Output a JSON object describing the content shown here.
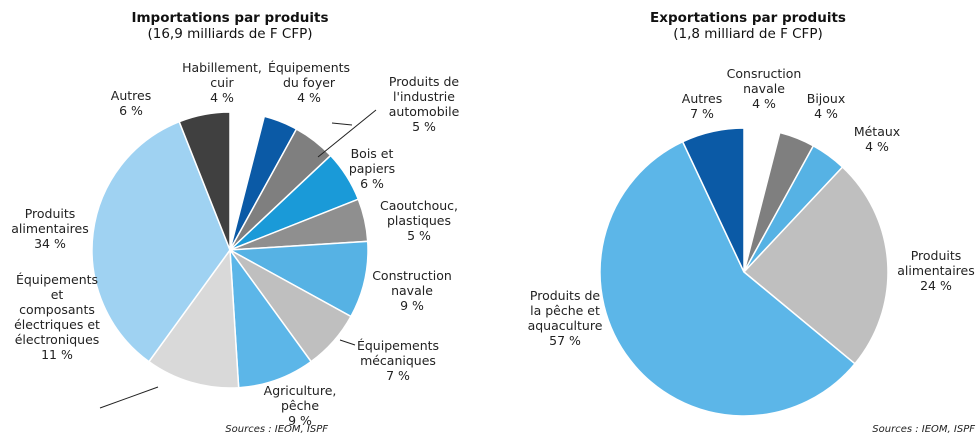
{
  "chart_data": [
    {
      "type": "pie",
      "title": "Importations par produits",
      "subtitle": "(16,9 milliards de F CFP)",
      "categories": [
        "Habillement,\ncuir",
        "Équipements\ndu foyer",
        "Produits de\nl'industrie\nautomobile",
        "Bois et\npapiers",
        "Caoutchouc,\nplastiques",
        "Construction\nnavale",
        "Équipements\nmécaniques",
        "Agriculture,\npêche",
        "Équipements\net\ncomposants\nélectriques et\nélectroniques",
        "Produits\nalimentaires",
        "Autres"
      ],
      "values": [
        4,
        4,
        5,
        6,
        5,
        9,
        7,
        9,
        11,
        34,
        6
      ],
      "value_labels": [
        "4 %",
        "4 %",
        "5 %",
        "6 %",
        "5 %",
        "9 %",
        "7 %",
        "9 %",
        "11 %",
        "34 %",
        "6 %"
      ],
      "colors": [
        "#ffffff",
        "#0b5aa6",
        "#7f7f7f",
        "#1a9ad8",
        "#8f8f8f",
        "#56b2e4",
        "#bfbfbf",
        "#5cb6e8",
        "#d9d9d9",
        "#9fd2f2",
        "#404040"
      ],
      "source": "Sources : IEOM, ISPF"
    },
    {
      "type": "pie",
      "title": "Exportations par produits",
      "subtitle": "(1,8 milliard de F CFP)",
      "categories": [
        "Consruction\nnavale",
        "Bijoux",
        "Métaux",
        "Produits\nalimentaires",
        "Produits de\nla pêche et\naquaculture",
        "Autres"
      ],
      "values": [
        4,
        4,
        4,
        24,
        57,
        7
      ],
      "value_labels": [
        "4 %",
        "4 %",
        "4 %",
        "24 %",
        "57 %",
        "7 %"
      ],
      "colors": [
        "#ffffff",
        "#7f7f7f",
        "#56b2e4",
        "#bfbfbf",
        "#5cb6e8",
        "#0b5aa6"
      ],
      "source": "Sources : IEOM, ISPF"
    }
  ]
}
